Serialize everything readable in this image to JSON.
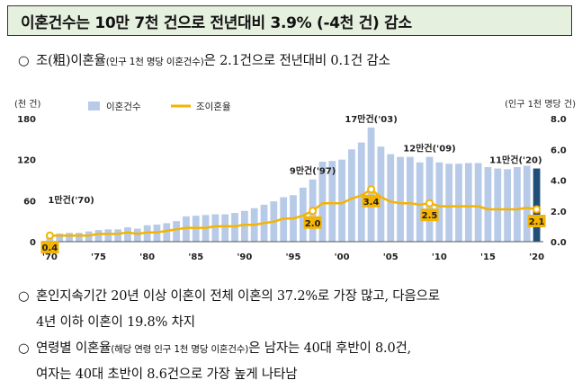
{
  "header": {
    "title": "이혼건수는 10만 7천 건으로 전년대비 3.9% (-4천 건) 감소"
  },
  "bullets": {
    "b1_symbol": "○",
    "b1_main": "조(粗)이혼율",
    "b1_note": "(인구 1천 명당 이혼건수)",
    "b1_rest": "은 2.1건으로 전년대비 0.1건 감소",
    "b2_symbol": "○",
    "b2_line1": "혼인지속기간 20년 이상 이혼이 전체 이혼의 37.2%로 가장 많고, 다음으로",
    "b2_line2": "4년 이하 이혼이 19.8% 차지",
    "b3_symbol": "○",
    "b3_main": "연령별 이혼율",
    "b3_note": "(해당 연령 인구 1천 명당 이혼건수)",
    "b3_rest": "은 남자는 40대 후반이 8.0건,",
    "b3_line2": "여자는 40대 초반이 8.6건으로 가장 높게 나타남"
  },
  "chart_data": {
    "type": "bar+line",
    "left_axis_label": "(천 건)",
    "right_axis_label": "(인구 1천 명당 건)",
    "legend": {
      "bar": "이혼건수",
      "line": "조이혼율"
    },
    "colors": {
      "bar": "#b7cbe8",
      "bar_highlight": "#1f4e79",
      "line": "#f5b400",
      "label_box": "#f5b400"
    },
    "years": [
      1970,
      1971,
      1972,
      1973,
      1974,
      1975,
      1976,
      1977,
      1978,
      1979,
      1980,
      1981,
      1982,
      1983,
      1984,
      1985,
      1986,
      1987,
      1988,
      1989,
      1990,
      1991,
      1992,
      1993,
      1994,
      1995,
      1996,
      1997,
      1998,
      1999,
      2000,
      2001,
      2002,
      2003,
      2004,
      2005,
      2006,
      2007,
      2008,
      2009,
      2010,
      2011,
      2012,
      2013,
      2014,
      2015,
      2016,
      2017,
      2018,
      2019,
      2020
    ],
    "divorces_thousand": [
      12,
      12,
      13,
      13,
      15,
      17,
      18,
      18,
      21,
      19,
      24,
      25,
      27,
      30,
      37,
      38,
      39,
      40,
      40,
      42,
      45,
      49,
      54,
      59,
      65,
      68,
      79,
      91,
      117,
      118,
      120,
      135,
      145,
      167,
      139,
      128,
      124,
      124,
      116,
      124,
      116,
      114,
      114,
      115,
      115,
      109,
      107,
      106,
      109,
      111,
      107
    ],
    "crude_divorce_rate": [
      0.4,
      0.4,
      0.4,
      0.4,
      0.4,
      0.5,
      0.5,
      0.5,
      0.6,
      0.5,
      0.6,
      0.6,
      0.7,
      0.8,
      0.9,
      0.9,
      0.9,
      1.0,
      1.0,
      1.0,
      1.1,
      1.1,
      1.2,
      1.3,
      1.5,
      1.5,
      1.7,
      2.0,
      2.5,
      2.5,
      2.5,
      2.8,
      3.0,
      3.4,
      2.9,
      2.6,
      2.5,
      2.5,
      2.4,
      2.5,
      2.3,
      2.3,
      2.3,
      2.3,
      2.3,
      2.1,
      2.1,
      2.1,
      2.1,
      2.2,
      2.1
    ],
    "left_axis": {
      "min": 0,
      "max": 180,
      "ticks": [
        0,
        60,
        120,
        180
      ]
    },
    "right_axis": {
      "min": 0,
      "max": 8,
      "ticks": [
        "0.0",
        "2.0",
        "4.0",
        "6.0",
        "8.0"
      ]
    },
    "x_tick_labels": [
      "'70",
      "'75",
      "'80",
      "'85",
      "'90",
      "'95",
      "'00",
      "'05",
      "'10",
      "'15",
      "'20"
    ],
    "bar_annotations": [
      {
        "year": 1970,
        "text": "1만건('70)"
      },
      {
        "year": 1997,
        "text": "9만건('97)"
      },
      {
        "year": 2003,
        "text": "17만건('03)"
      },
      {
        "year": 2009,
        "text": "12만건('09)"
      },
      {
        "year": 2020,
        "text": "11만건('20)"
      }
    ],
    "rate_labels": [
      {
        "year": 1970,
        "text": "0.4"
      },
      {
        "year": 1997,
        "text": "2.0"
      },
      {
        "year": 2003,
        "text": "3.4"
      },
      {
        "year": 2009,
        "text": "2.5"
      },
      {
        "year": 2020,
        "text": "2.1"
      }
    ],
    "highlight_year": 2020
  }
}
